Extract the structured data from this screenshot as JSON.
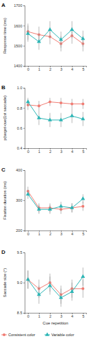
{
  "chart_data": [
    {
      "type": "line",
      "title": "A",
      "y_label": "Response time (ms)",
      "x": [
        0,
        1,
        2,
        3,
        4,
        5
      ],
      "xlim": [
        -0.3,
        5.3
      ],
      "xticks": [
        0,
        1,
        2,
        3,
        4,
        5
      ],
      "ylim": [
        1400,
        1700
      ],
      "yticks": [
        1400,
        1500,
        1600,
        1700
      ],
      "series": [
        {
          "color": "#f07b72",
          "marker": "circle",
          "values": [
            1570,
            1555,
            1545,
            1510,
            1550,
            1510
          ],
          "errors": [
            40,
            40,
            38,
            38,
            40,
            38
          ]
        },
        {
          "color": "#2bb5b5",
          "marker": "triangle",
          "values": [
            1560,
            1520,
            1580,
            1530,
            1580,
            1535
          ],
          "errors": [
            40,
            40,
            42,
            40,
            42,
            40
          ]
        }
      ]
    },
    {
      "type": "line",
      "title": "B",
      "y_label": "p(target-cue|1st saccade)",
      "x": [
        0,
        1,
        2,
        3,
        4,
        5
      ],
      "xlim": [
        -0.3,
        5.3
      ],
      "xticks": [
        0,
        1,
        2,
        3,
        4,
        5
      ],
      "ylim": [
        0.4,
        1
      ],
      "yticks": [
        0.4,
        0.6,
        0.8,
        {
          "value": 1,
          "label": "1.0"
        }
      ],
      "series": [
        {
          "color": "#f07b72",
          "marker": "circle",
          "values": [
            0.83,
            0.82,
            0.86,
            0.85,
            0.84,
            0.84
          ],
          "errors": [
            0.05,
            0.05,
            0.04,
            0.05,
            0.05,
            0.05
          ]
        },
        {
          "color": "#2bb5b5",
          "marker": "triangle",
          "values": [
            0.86,
            0.7,
            0.68,
            0.68,
            0.72,
            0.69
          ],
          "errors": [
            0.04,
            0.07,
            0.07,
            0.07,
            0.07,
            0.07
          ]
        }
      ]
    },
    {
      "type": "line",
      "title": "C",
      "y_label": "Fixation duration (ms)",
      "x": [
        0,
        1,
        2,
        3,
        4,
        5
      ],
      "xlim": [
        -0.3,
        5.3
      ],
      "xticks": [
        0,
        1,
        2,
        3,
        4,
        5
      ],
      "ylim": [
        200,
        400
      ],
      "yticks": [
        200,
        300,
        400
      ],
      "series": [
        {
          "color": "#f07b72",
          "marker": "circle",
          "values": [
            330,
            275,
            275,
            270,
            275,
            280
          ],
          "errors": [
            15,
            15,
            15,
            15,
            15,
            15
          ]
        },
        {
          "color": "#2bb5b5",
          "marker": "triangle",
          "values": [
            320,
            270,
            270,
            280,
            275,
            305
          ],
          "errors": [
            15,
            15,
            15,
            15,
            15,
            15
          ]
        }
      ]
    },
    {
      "type": "line",
      "title": "D",
      "y_label": "Saccade size (°)",
      "x_label": "Cue repetition",
      "x": [
        0,
        1,
        2,
        3,
        4,
        5
      ],
      "xlim": [
        -0.3,
        5.3
      ],
      "xticks": [
        0,
        1,
        2,
        3,
        4,
        5
      ],
      "ylim": [
        8.5,
        9.5
      ],
      "yticks": [
        8.5,
        {
          "value": 9,
          "label": "9.0"
        },
        9.5
      ],
      "legend": "bottom",
      "series": [
        {
          "name": "Consistent color",
          "color": "#f07b72",
          "marker": "circle",
          "values": [
            9.05,
            8.9,
            9.0,
            8.8,
            8.9,
            8.9
          ],
          "errors": [
            0.15,
            0.15,
            0.15,
            0.15,
            0.15,
            0.15
          ]
        },
        {
          "name": "Variable color",
          "color": "#2bb5b5",
          "marker": "triangle",
          "values": [
            9.05,
            8.8,
            8.95,
            8.75,
            8.85,
            9.1
          ],
          "errors": [
            0.15,
            0.15,
            0.15,
            0.15,
            0.15,
            0.15
          ]
        }
      ]
    }
  ]
}
